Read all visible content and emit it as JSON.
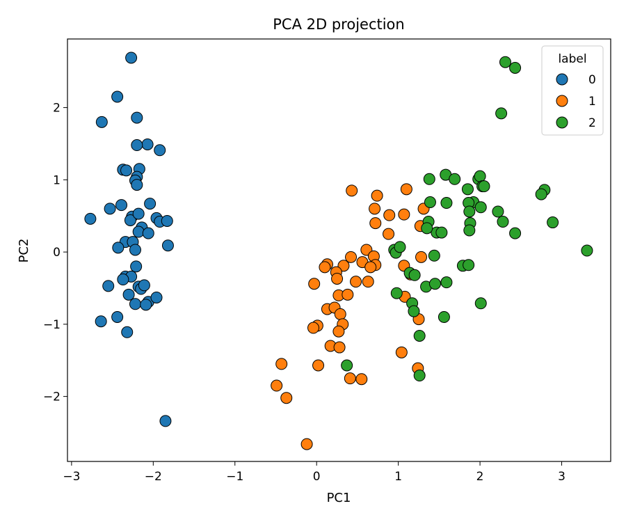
{
  "chart_data": {
    "type": "scatter",
    "title": "PCA 2D projection",
    "xlabel": "PC1",
    "ylabel": "PC2",
    "xlim": [
      -3.05,
      3.6
    ],
    "ylim": [
      -2.9,
      2.95
    ],
    "xticks": [
      -3,
      -2,
      -1,
      0,
      1,
      2,
      3
    ],
    "yticks": [
      -2,
      -1,
      0,
      1,
      2
    ],
    "tick_labels": {
      "x": [
        "−3",
        "−2",
        "−1",
        "0",
        "1",
        "2",
        "3"
      ],
      "y": [
        "−2",
        "−1",
        "0",
        "1",
        "2"
      ]
    },
    "grid": false,
    "legend": {
      "title": "label",
      "position": "top-right",
      "entries": [
        "0",
        "1",
        "2"
      ]
    },
    "colors": [
      "#1f77b4",
      "#ff7f0e",
      "#2ca02c"
    ],
    "series": [
      {
        "name": "0",
        "points": [
          [
            -2.27,
            2.69
          ],
          [
            -2.44,
            2.15
          ],
          [
            -2.63,
            1.8
          ],
          [
            -2.2,
            1.86
          ],
          [
            -2.07,
            1.49
          ],
          [
            -2.2,
            1.48
          ],
          [
            -1.92,
            1.41
          ],
          [
            -2.37,
            1.14
          ],
          [
            -2.33,
            1.13
          ],
          [
            -2.17,
            1.15
          ],
          [
            -2.2,
            1.04
          ],
          [
            -2.22,
            0.99
          ],
          [
            -2.2,
            0.93
          ],
          [
            -2.04,
            0.67
          ],
          [
            -2.39,
            0.65
          ],
          [
            -2.53,
            0.6
          ],
          [
            -2.77,
            0.46
          ],
          [
            -2.26,
            0.49
          ],
          [
            -2.28,
            0.44
          ],
          [
            -2.18,
            0.53
          ],
          [
            -1.96,
            0.47
          ],
          [
            -1.92,
            0.42
          ],
          [
            -1.83,
            0.43
          ],
          [
            -2.14,
            0.34
          ],
          [
            -2.18,
            0.28
          ],
          [
            -2.06,
            0.26
          ],
          [
            -2.34,
            0.14
          ],
          [
            -2.25,
            0.14
          ],
          [
            -2.43,
            0.06
          ],
          [
            -2.22,
            0.03
          ],
          [
            -1.82,
            0.09
          ],
          [
            -2.21,
            -0.2
          ],
          [
            -2.34,
            -0.34
          ],
          [
            -2.27,
            -0.34
          ],
          [
            -2.37,
            -0.38
          ],
          [
            -2.55,
            -0.47
          ],
          [
            -2.18,
            -0.48
          ],
          [
            -2.15,
            -0.51
          ],
          [
            -2.11,
            -0.46
          ],
          [
            -2.3,
            -0.59
          ],
          [
            -2.22,
            -0.72
          ],
          [
            -2.06,
            -0.69
          ],
          [
            -2.09,
            -0.73
          ],
          [
            -1.96,
            -0.63
          ],
          [
            -2.44,
            -0.9
          ],
          [
            -2.64,
            -0.96
          ],
          [
            -2.32,
            -1.11
          ],
          [
            -1.85,
            -2.34
          ]
        ]
      },
      {
        "name": "1",
        "points": [
          [
            0.43,
            0.85
          ],
          [
            0.74,
            0.78
          ],
          [
            1.1,
            0.87
          ],
          [
            0.71,
            0.6
          ],
          [
            0.89,
            0.51
          ],
          [
            1.07,
            0.52
          ],
          [
            0.72,
            0.4
          ],
          [
            0.88,
            0.25
          ],
          [
            0.61,
            0.03
          ],
          [
            0.7,
            -0.06
          ],
          [
            0.72,
            -0.18
          ],
          [
            0.56,
            -0.14
          ],
          [
            0.66,
            -0.21
          ],
          [
            0.42,
            -0.07
          ],
          [
            0.33,
            -0.19
          ],
          [
            0.13,
            -0.17
          ],
          [
            0.1,
            -0.21
          ],
          [
            0.24,
            -0.28
          ],
          [
            0.25,
            -0.37
          ],
          [
            -0.03,
            -0.44
          ],
          [
            0.48,
            -0.41
          ],
          [
            0.63,
            -0.41
          ],
          [
            1.07,
            -0.19
          ],
          [
            1.15,
            -0.31
          ],
          [
            1.28,
            -0.07
          ],
          [
            1.27,
            0.36
          ],
          [
            1.31,
            0.6
          ],
          [
            0.27,
            -0.6
          ],
          [
            0.38,
            -0.59
          ],
          [
            0.13,
            -0.79
          ],
          [
            0.22,
            -0.77
          ],
          [
            0.29,
            -0.86
          ],
          [
            0.32,
            -1.0
          ],
          [
            1.08,
            -0.62
          ],
          [
            0.27,
            -1.1
          ],
          [
            0.01,
            -1.02
          ],
          [
            -0.04,
            -1.05
          ],
          [
            1.25,
            -0.93
          ],
          [
            0.17,
            -1.3
          ],
          [
            0.28,
            -1.32
          ],
          [
            1.04,
            -1.39
          ],
          [
            0.41,
            -1.75
          ],
          [
            0.55,
            -1.76
          ],
          [
            1.24,
            -1.61
          ],
          [
            -0.43,
            -1.55
          ],
          [
            -0.49,
            -1.85
          ],
          [
            -0.37,
            -2.02
          ],
          [
            -0.12,
            -2.66
          ],
          [
            0.02,
            -1.57
          ]
        ]
      },
      {
        "name": "2",
        "points": [
          [
            2.31,
            2.63
          ],
          [
            2.43,
            2.55
          ],
          [
            2.26,
            1.92
          ],
          [
            1.58,
            1.07
          ],
          [
            1.69,
            1.01
          ],
          [
            1.98,
            1.01
          ],
          [
            2.0,
            1.05
          ],
          [
            1.38,
            1.01
          ],
          [
            2.03,
            0.91
          ],
          [
            2.05,
            0.91
          ],
          [
            1.85,
            0.87
          ],
          [
            2.79,
            0.86
          ],
          [
            2.75,
            0.8
          ],
          [
            1.92,
            0.69
          ],
          [
            1.86,
            0.68
          ],
          [
            1.39,
            0.69
          ],
          [
            1.59,
            0.68
          ],
          [
            1.87,
            0.56
          ],
          [
            2.01,
            0.62
          ],
          [
            2.22,
            0.56
          ],
          [
            1.37,
            0.42
          ],
          [
            1.88,
            0.4
          ],
          [
            2.28,
            0.42
          ],
          [
            2.89,
            0.41
          ],
          [
            1.87,
            0.3
          ],
          [
            1.47,
            0.27
          ],
          [
            1.53,
            0.27
          ],
          [
            2.43,
            0.26
          ],
          [
            1.35,
            0.33
          ],
          [
            0.95,
            0.03
          ],
          [
            0.97,
            -0.01
          ],
          [
            1.02,
            0.07
          ],
          [
            3.31,
            0.02
          ],
          [
            1.14,
            -0.29
          ],
          [
            1.2,
            -0.32
          ],
          [
            1.44,
            -0.05
          ],
          [
            1.79,
            -0.19
          ],
          [
            1.86,
            -0.18
          ],
          [
            1.34,
            -0.48
          ],
          [
            1.45,
            -0.44
          ],
          [
            1.59,
            -0.42
          ],
          [
            0.98,
            -0.57
          ],
          [
            1.17,
            -0.71
          ],
          [
            1.19,
            -0.82
          ],
          [
            2.01,
            -0.71
          ],
          [
            1.56,
            -0.9
          ],
          [
            1.26,
            -1.16
          ],
          [
            0.37,
            -1.57
          ],
          [
            1.26,
            -1.71
          ]
        ]
      }
    ]
  }
}
